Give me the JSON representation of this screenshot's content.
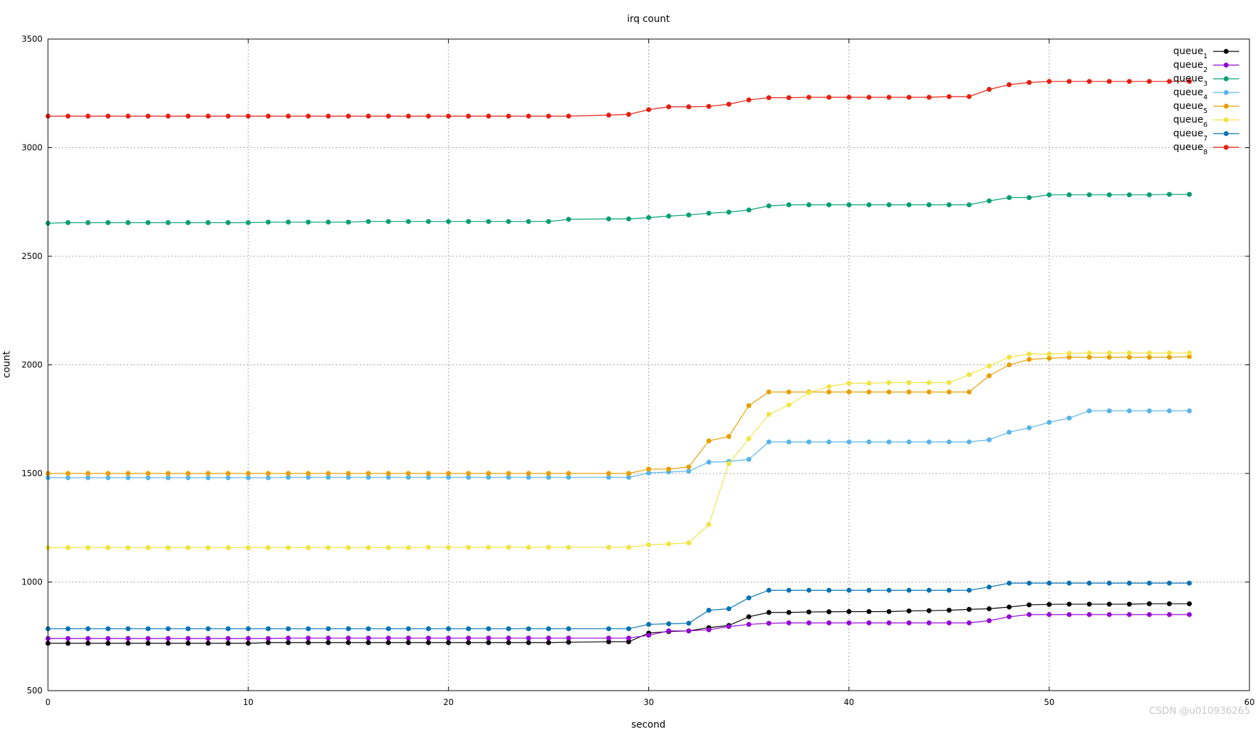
{
  "chart_data": {
    "type": "line",
    "title": "irq count",
    "xlabel": "second",
    "ylabel": "count",
    "xlim": [
      0,
      60
    ],
    "ylim": [
      500,
      3500
    ],
    "xticks": [
      0,
      10,
      20,
      30,
      40,
      50,
      60
    ],
    "yticks": [
      500,
      1000,
      1500,
      2000,
      2500,
      3000,
      3500
    ],
    "grid": true,
    "legend_position": "top-right",
    "x": [
      0,
      1,
      2,
      3,
      4,
      5,
      6,
      7,
      8,
      9,
      10,
      11,
      12,
      13,
      14,
      15,
      16,
      17,
      18,
      19,
      20,
      21,
      22,
      23,
      24,
      25,
      26,
      27,
      28,
      29,
      30,
      31,
      32,
      33,
      34,
      35,
      36,
      37,
      38,
      39,
      40,
      41,
      42,
      43,
      44,
      45,
      46,
      47,
      48,
      49,
      50,
      51,
      52,
      53,
      54,
      55,
      56,
      57
    ],
    "series": [
      {
        "name": "queue1",
        "base": "queue",
        "sub": "1",
        "color": "#000000",
        "values": [
          718,
          718,
          718,
          718,
          718,
          718,
          718,
          718,
          718,
          718,
          718,
          721,
          721,
          721,
          721,
          721,
          721,
          721,
          721,
          721,
          721,
          721,
          721,
          721,
          721,
          721,
          723,
          null,
          725,
          725,
          765,
          772,
          775,
          790,
          800,
          840,
          860,
          860,
          862,
          863,
          864,
          864,
          864,
          867,
          868,
          870,
          874,
          877,
          885,
          895,
          897,
          898,
          898,
          898,
          898,
          900,
          900,
          900
        ]
      },
      {
        "name": "queue2",
        "base": "queue",
        "sub": "2",
        "color": "#9400d3",
        "values": [
          740,
          740,
          740,
          740,
          740,
          740,
          740,
          740,
          740,
          740,
          740,
          740,
          742,
          742,
          742,
          742,
          742,
          742,
          742,
          742,
          742,
          742,
          742,
          742,
          742,
          742,
          742,
          null,
          742,
          742,
          755,
          775,
          775,
          780,
          795,
          805,
          810,
          812,
          812,
          812,
          812,
          812,
          812,
          812,
          812,
          812,
          812,
          822,
          840,
          850,
          850,
          850,
          850,
          850,
          850,
          850,
          850,
          850
        ]
      },
      {
        "name": "queue3",
        "base": "queue",
        "sub": "3",
        "color": "#009e73",
        "values": [
          2652,
          2655,
          2655,
          2655,
          2655,
          2655,
          2655,
          2655,
          2655,
          2655,
          2655,
          2657,
          2657,
          2657,
          2657,
          2657,
          2660,
          2660,
          2660,
          2660,
          2660,
          2660,
          2660,
          2660,
          2660,
          2660,
          2670,
          null,
          2672,
          2672,
          2678,
          2685,
          2690,
          2698,
          2703,
          2713,
          2732,
          2737,
          2737,
          2737,
          2737,
          2737,
          2737,
          2737,
          2737,
          2737,
          2737,
          2755,
          2770,
          2770,
          2783,
          2783,
          2783,
          2783,
          2783,
          2783,
          2785,
          2785
        ]
      },
      {
        "name": "queue4",
        "base": "queue",
        "sub": "4",
        "color": "#56b4e9",
        "values": [
          1480,
          1480,
          1480,
          1480,
          1480,
          1480,
          1480,
          1480,
          1480,
          1480,
          1480,
          1480,
          1482,
          1482,
          1482,
          1482,
          1482,
          1482,
          1482,
          1482,
          1482,
          1482,
          1482,
          1482,
          1482,
          1482,
          1482,
          null,
          1482,
          1482,
          1502,
          1507,
          1510,
          1552,
          1555,
          1565,
          1645,
          1645,
          1645,
          1645,
          1645,
          1645,
          1645,
          1645,
          1645,
          1645,
          1645,
          1655,
          1690,
          1710,
          1735,
          1755,
          1788,
          1788,
          1788,
          1788,
          1788,
          1788
        ]
      },
      {
        "name": "queue5",
        "base": "queue",
        "sub": "5",
        "color": "#e69f00",
        "values": [
          1500,
          1500,
          1500,
          1500,
          1500,
          1500,
          1500,
          1500,
          1500,
          1500,
          1500,
          1500,
          1500,
          1500,
          1500,
          1500,
          1500,
          1500,
          1500,
          1500,
          1500,
          1500,
          1500,
          1500,
          1500,
          1500,
          1500,
          null,
          1500,
          1500,
          1520,
          1520,
          1530,
          1650,
          1670,
          1812,
          1875,
          1875,
          1875,
          1875,
          1875,
          1875,
          1875,
          1875,
          1875,
          1875,
          1875,
          1950,
          2000,
          2025,
          2030,
          2035,
          2035,
          2035,
          2035,
          2035,
          2035,
          2038
        ]
      },
      {
        "name": "queue6",
        "base": "queue",
        "sub": "6",
        "color": "#f0e442",
        "values": [
          1158,
          1158,
          1158,
          1158,
          1158,
          1158,
          1158,
          1158,
          1158,
          1158,
          1158,
          1158,
          1158,
          1158,
          1158,
          1158,
          1158,
          1158,
          1158,
          1160,
          1160,
          1160,
          1160,
          1160,
          1160,
          1160,
          1160,
          null,
          1160,
          1160,
          1172,
          1175,
          1180,
          1265,
          1545,
          1660,
          1772,
          1815,
          1872,
          1900,
          1915,
          1915,
          1918,
          1918,
          1918,
          1918,
          1955,
          1995,
          2035,
          2050,
          2050,
          2053,
          2055,
          2055,
          2055,
          2055,
          2055,
          2055
        ]
      },
      {
        "name": "queue7",
        "base": "queue",
        "sub": "7",
        "color": "#0072b2",
        "values": [
          785,
          785,
          785,
          785,
          785,
          785,
          785,
          785,
          785,
          785,
          785,
          785,
          785,
          785,
          785,
          785,
          785,
          785,
          785,
          785,
          785,
          785,
          785,
          785,
          785,
          785,
          785,
          null,
          785,
          785,
          805,
          808,
          810,
          870,
          877,
          927,
          962,
          962,
          962,
          962,
          962,
          962,
          962,
          962,
          962,
          962,
          962,
          977,
          995,
          995,
          995,
          995,
          995,
          995,
          995,
          995,
          995,
          995
        ]
      },
      {
        "name": "queue8",
        "base": "queue",
        "sub": "8",
        "color": "#e51e10",
        "values": [
          3145,
          3145,
          3145,
          3145,
          3145,
          3145,
          3145,
          3145,
          3145,
          3145,
          3145,
          3145,
          3145,
          3145,
          3145,
          3145,
          3145,
          3145,
          3145,
          3145,
          3145,
          3145,
          3145,
          3145,
          3145,
          3145,
          3145,
          null,
          3150,
          3153,
          3175,
          3188,
          3188,
          3190,
          3200,
          3220,
          3230,
          3230,
          3232,
          3232,
          3232,
          3232,
          3232,
          3232,
          3232,
          3235,
          3235,
          3268,
          3290,
          3300,
          3305,
          3305,
          3305,
          3305,
          3305,
          3305,
          3305,
          3305
        ]
      }
    ]
  },
  "watermark": "CSDN @u010936265"
}
